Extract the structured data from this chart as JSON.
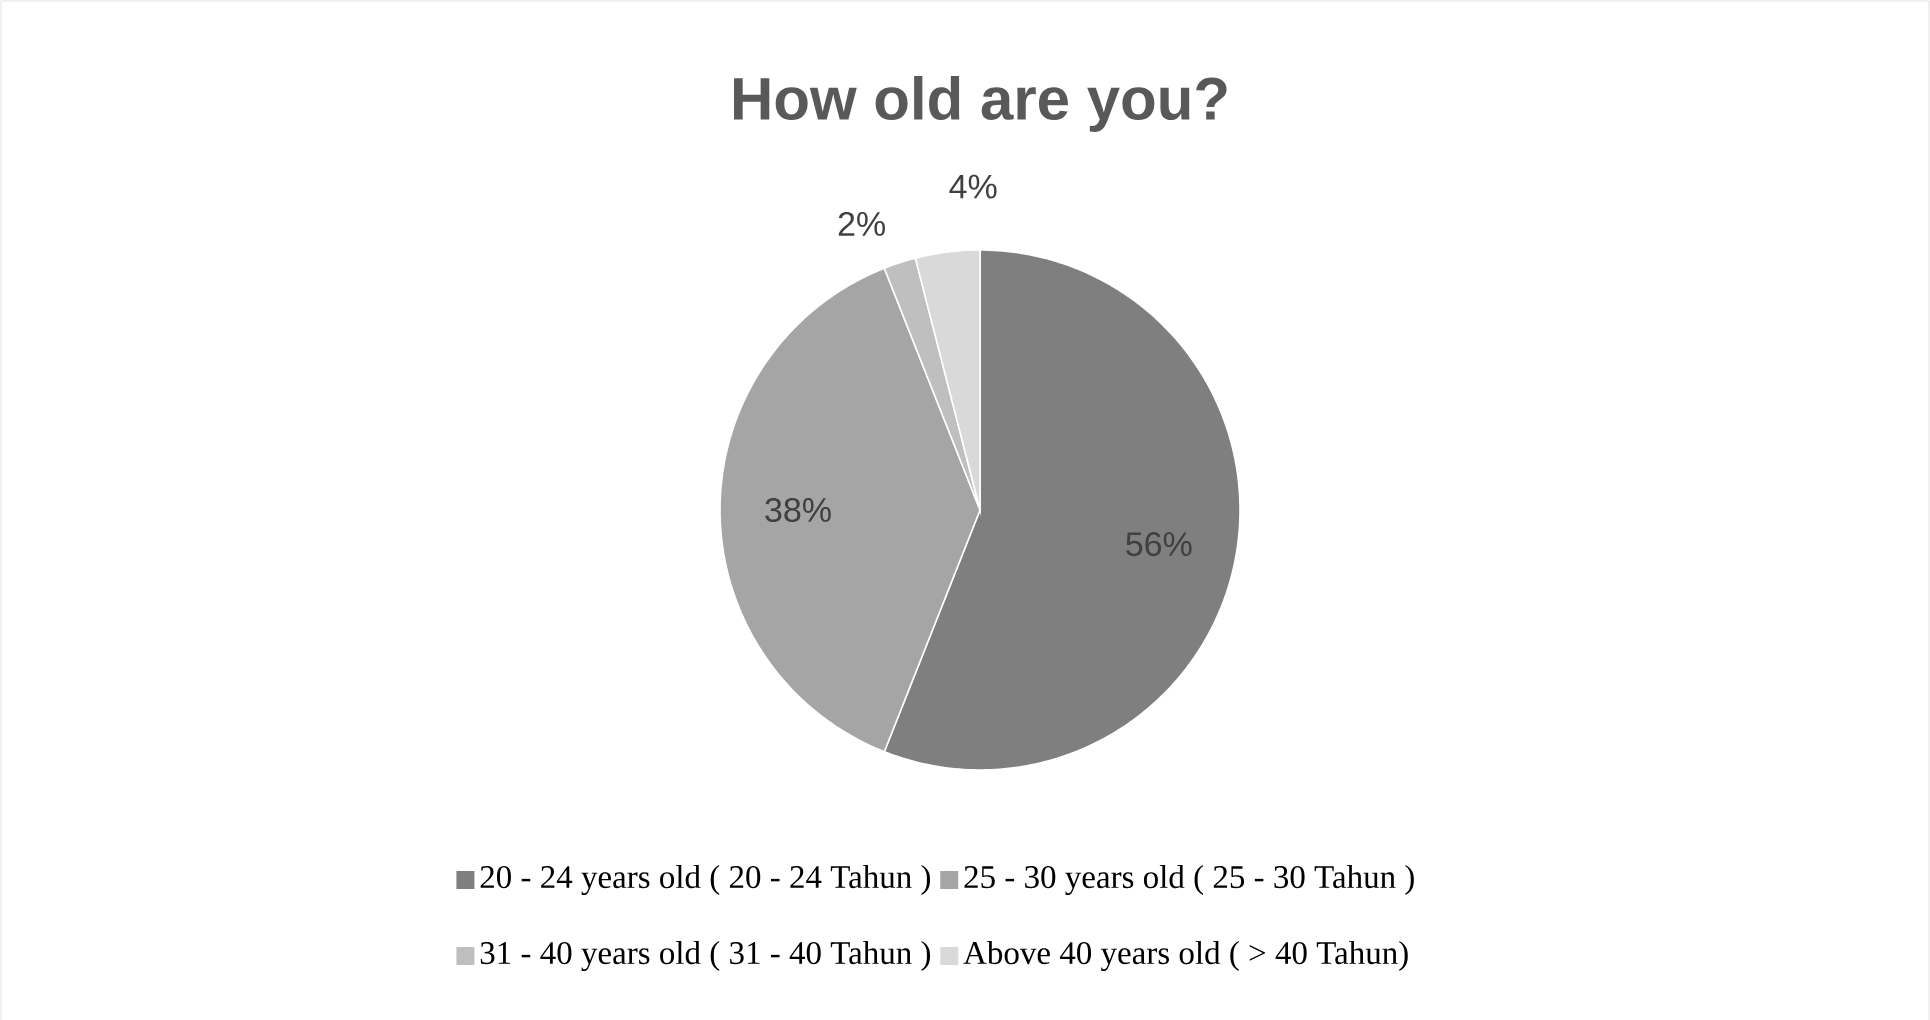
{
  "chart_data": {
    "type": "pie",
    "title": "How old are you?",
    "categories": [
      "20 - 24 years old ( 20 - 24 Tahun )",
      "25 - 30 years old ( 25 - 30 Tahun )",
      "31 - 40 years old ( 31 - 40 Tahun )",
      "Above 40 years old ( > 40 Tahun)"
    ],
    "values": [
      56,
      38,
      2,
      4
    ],
    "value_labels": [
      "56%",
      "38%",
      "2%",
      "4%"
    ],
    "colors": [
      "#7f7f7f",
      "#a5a5a5",
      "#bfbfbf",
      "#d9d9d9"
    ],
    "legend": "bottom"
  }
}
